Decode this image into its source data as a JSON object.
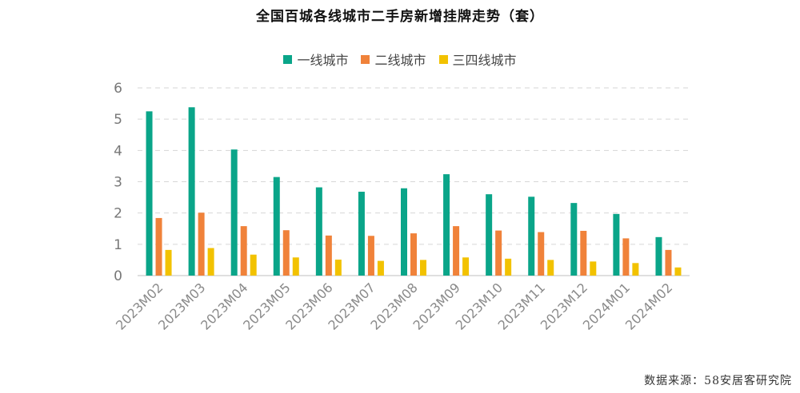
{
  "chart_data": {
    "type": "bar",
    "title": "全国百城各线城市二手房新增挂牌走势（套）",
    "categories": [
      "2023M02",
      "2023M03",
      "2023M04",
      "2023M05",
      "2023M06",
      "2023M07",
      "2023M08",
      "2023M09",
      "2023M10",
      "2023M11",
      "2023M12",
      "2024M01",
      "2024M02"
    ],
    "series": [
      {
        "name": "一线城市",
        "color": "#0aa589",
        "values": [
          5.25,
          5.38,
          4.03,
          3.15,
          2.82,
          2.68,
          2.79,
          3.24,
          2.6,
          2.52,
          2.32,
          1.97,
          1.23
        ]
      },
      {
        "name": "二线城市",
        "color": "#f0823a",
        "values": [
          1.84,
          2.01,
          1.58,
          1.45,
          1.28,
          1.27,
          1.35,
          1.58,
          1.44,
          1.39,
          1.43,
          1.19,
          0.82
        ]
      },
      {
        "name": "三四线城市",
        "color": "#f2c200",
        "values": [
          0.82,
          0.88,
          0.67,
          0.58,
          0.51,
          0.47,
          0.5,
          0.58,
          0.54,
          0.5,
          0.45,
          0.4,
          0.26
        ]
      }
    ],
    "ylim": [
      0,
      6
    ],
    "yticks": [
      0,
      1,
      2,
      3,
      4,
      5,
      6
    ],
    "grid": true,
    "legend_position": "top-center",
    "xlabel": "",
    "ylabel": ""
  },
  "source": "数据来源：58安居客研究院"
}
